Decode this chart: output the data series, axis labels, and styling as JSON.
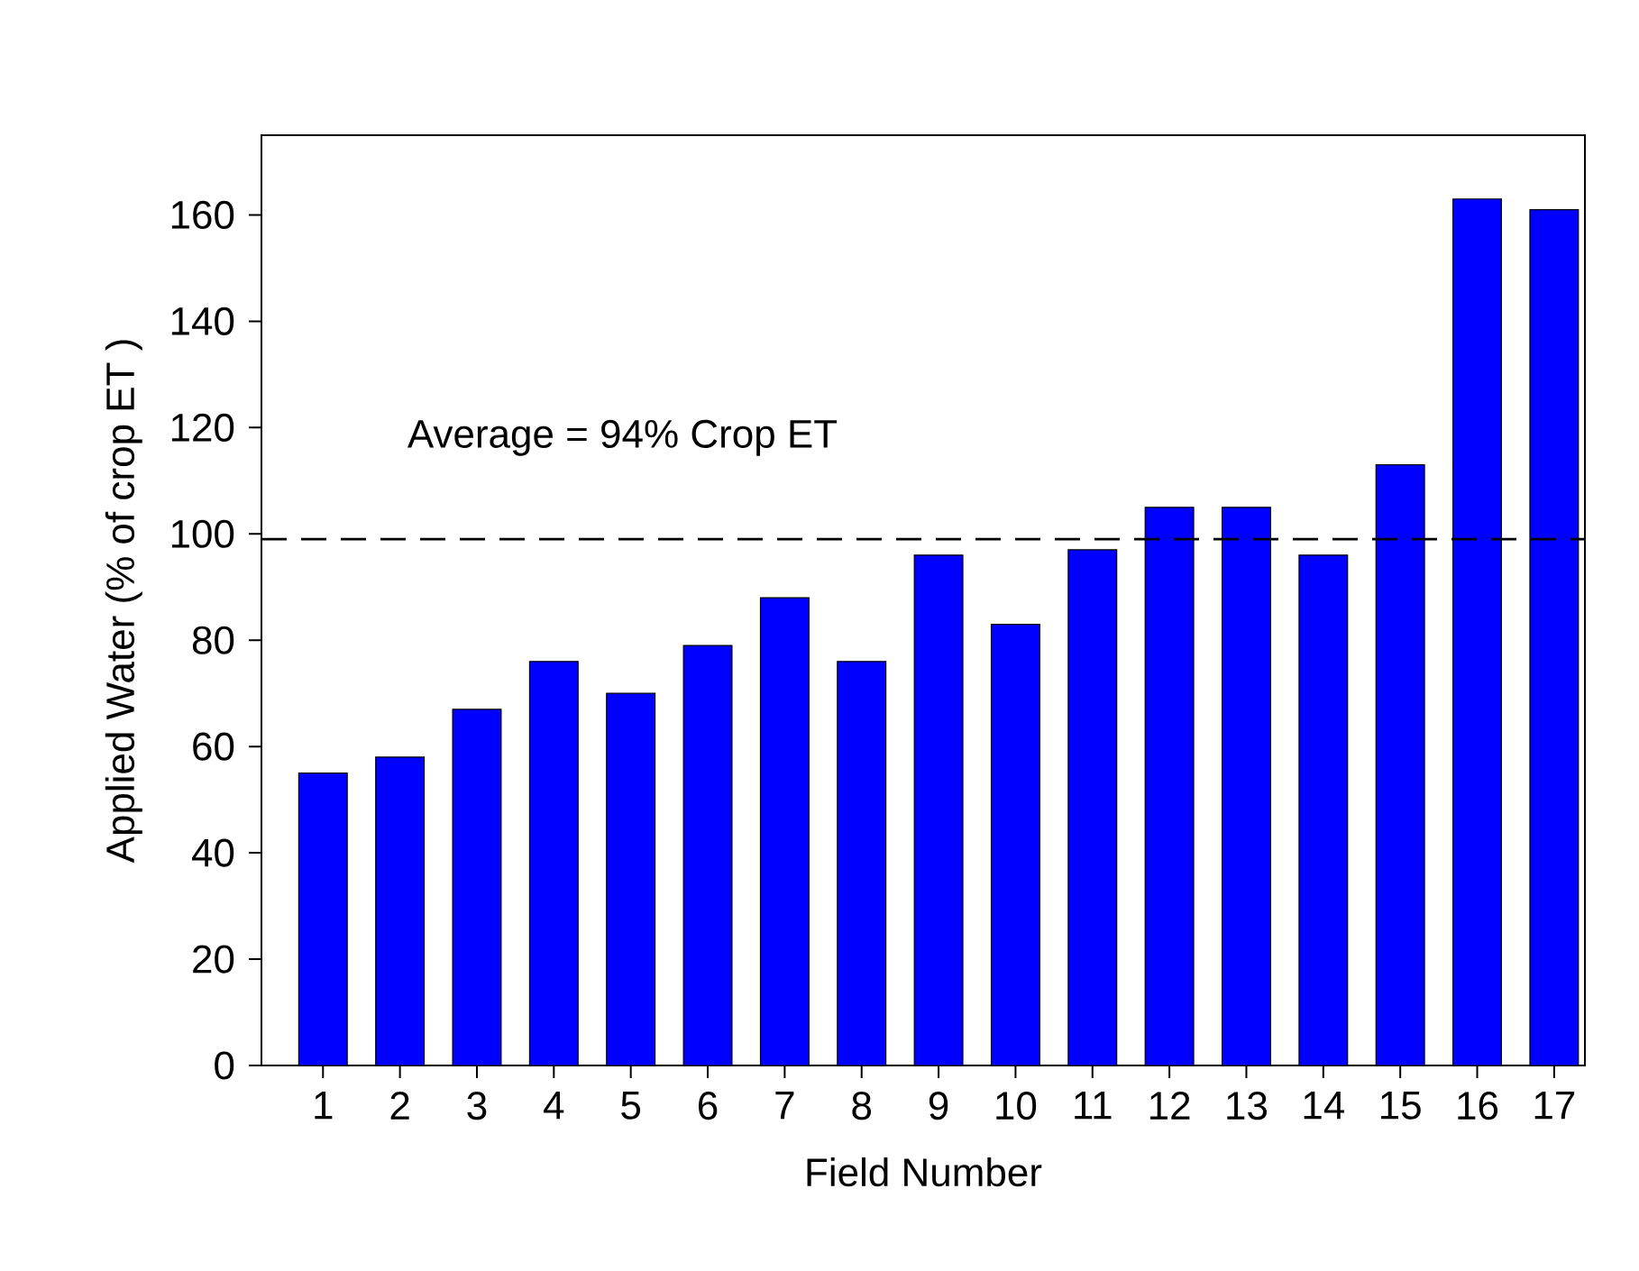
{
  "chart_data": {
    "type": "bar",
    "xlabel": "Field Number",
    "ylabel": "Applied Water (% of crop ET )",
    "categories": [
      "1",
      "2",
      "3",
      "4",
      "5",
      "6",
      "7",
      "8",
      "9",
      "10",
      "11",
      "12",
      "13",
      "14",
      "15",
      "16",
      "17"
    ],
    "values": [
      55,
      58,
      67,
      76,
      70,
      79,
      88,
      76,
      96,
      83,
      97,
      105,
      105,
      96,
      113,
      163,
      161
    ],
    "color": "#0000ff",
    "ylim": [
      0,
      175
    ],
    "yticks": [
      0,
      20,
      40,
      60,
      80,
      100,
      120,
      140,
      160
    ],
    "ref_lines": [
      {
        "axis": "y",
        "value": 99,
        "line_style": "dashed",
        "color": "#000000"
      }
    ],
    "annotations": [
      "Average = 94% Crop ET"
    ]
  }
}
